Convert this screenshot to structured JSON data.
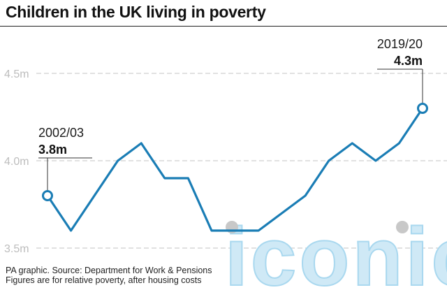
{
  "title": "Children in the UK living in poverty",
  "source_line1": "PA graphic. Source: Department for Work & Pensions",
  "source_line2": "Figures are for relative poverty, after housing costs",
  "watermark": "iconic",
  "colors": {
    "line": "#1a7db5",
    "grid": "#cfcfcf",
    "text": "#1a1a1a",
    "watermark": "#cfe9f6",
    "marker_fill": "#ffffff"
  },
  "chart_data": {
    "type": "line",
    "ylim": [
      3.5,
      4.6
    ],
    "y_ticks": [
      {
        "value": 3.5,
        "label": "3.5m"
      },
      {
        "value": 4.0,
        "label": "4.0m"
      },
      {
        "value": 4.5,
        "label": "4.5m"
      }
    ],
    "series": [
      {
        "values": [
          3.8,
          3.6,
          3.8,
          4.0,
          4.1,
          3.9,
          3.9,
          3.6,
          3.6,
          3.6,
          3.7,
          3.8,
          4.0,
          4.1,
          4.0,
          4.1,
          4.3
        ]
      }
    ],
    "annotations": [
      {
        "index": 0,
        "period": "2002/03",
        "value_label": "3.8m"
      },
      {
        "index": 16,
        "period": "2019/20",
        "value_label": "4.3m"
      }
    ],
    "grid": true
  }
}
